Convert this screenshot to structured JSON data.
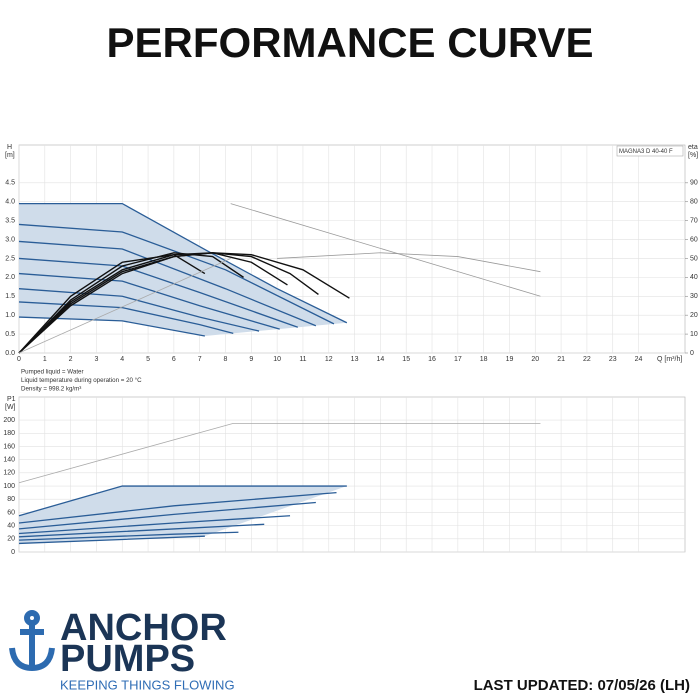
{
  "header": {
    "title": "PERFORMANCE CURVE"
  },
  "footer": {
    "brand_top": "ANCHOR",
    "brand_bottom": "PUMPS",
    "tagline": "KEEPING THINGS FLOWING",
    "updated": "LAST UPDATED: 07/05/26 (LH)"
  },
  "chart_data": [
    {
      "type": "line",
      "ylabel": "H",
      "yunit": "[m]",
      "y2label": "eta",
      "y2unit": "[%]",
      "xlabel": "Q [m³/h]",
      "model": "MAGNA3 D 40-40 F",
      "xlim": [
        0,
        25.8
      ],
      "xticks": [
        0,
        1,
        2,
        3,
        4,
        5,
        6,
        7,
        8,
        9,
        10,
        11,
        12,
        13,
        14,
        15,
        16,
        17,
        18,
        19,
        20,
        21,
        22,
        23,
        24
      ],
      "xtick_labels": true,
      "ylim": [
        0,
        5.5
      ],
      "yticks": [
        {
          "value": 0,
          "label": "0.0"
        },
        0.5,
        {
          "value": 1,
          "label": "1.0"
        },
        1.5,
        {
          "value": 2,
          "label": "2.0"
        },
        2.5,
        {
          "value": 3,
          "label": "3.0"
        },
        3.5,
        {
          "value": 4,
          "label": "4.0"
        },
        4.5
      ],
      "y2lim": [
        0,
        110
      ],
      "y2ticks": [
        0,
        10,
        20,
        30,
        40,
        50,
        60,
        70,
        80,
        90
      ],
      "grid": true,
      "band": {
        "from": 0,
        "to": 7,
        "color": "#cfdcea"
      },
      "notes": [
        "Pumped liquid = Water",
        "Liquid temperature during operation = 20 °C",
        "Density = 998.2 kg/m³"
      ],
      "series": [
        {
          "color": "#2a5d97",
          "x": [
            0,
            4,
            7.3,
            10,
            12.7
          ],
          "values": [
            3.95,
            3.95,
            2.7,
            1.7,
            0.8
          ]
        },
        {
          "color": "#2a5d97",
          "x": [
            0,
            4,
            8,
            12.2
          ],
          "values": [
            3.4,
            3.2,
            2.2,
            0.77
          ]
        },
        {
          "color": "#2a5d97",
          "x": [
            0,
            4,
            8,
            11.5
          ],
          "values": [
            2.95,
            2.75,
            1.7,
            0.72
          ]
        },
        {
          "color": "#2a5d97",
          "x": [
            0,
            4,
            7,
            10.8
          ],
          "values": [
            2.5,
            2.3,
            1.6,
            0.68
          ]
        },
        {
          "color": "#2a5d97",
          "x": [
            0,
            4,
            7,
            10.1
          ],
          "values": [
            2.1,
            1.9,
            1.25,
            0.63
          ]
        },
        {
          "color": "#2a5d97",
          "x": [
            0,
            4,
            7,
            9.3
          ],
          "values": [
            1.7,
            1.5,
            0.95,
            0.58
          ]
        },
        {
          "color": "#2a5d97",
          "x": [
            0,
            4,
            7,
            8.3
          ],
          "values": [
            1.35,
            1.2,
            0.75,
            0.52
          ]
        },
        {
          "color": "#2a5d97",
          "x": [
            0,
            4,
            7.2
          ],
          "values": [
            0.95,
            0.85,
            0.45
          ]
        },
        {
          "color": "#111111",
          "axis": "y2",
          "x": [
            0,
            2,
            4,
            6,
            7.5,
            9,
            11,
            12.8
          ],
          "values": [
            0,
            25,
            42,
            51,
            53,
            52,
            44,
            29
          ]
        },
        {
          "color": "#111111",
          "axis": "y2",
          "x": [
            0,
            2,
            4,
            6,
            7.5,
            9,
            10.5,
            11.6
          ],
          "values": [
            0,
            26,
            43,
            51,
            53,
            51,
            42,
            31
          ]
        },
        {
          "color": "#111111",
          "axis": "y2",
          "x": [
            0,
            2,
            4,
            6,
            7.5,
            9,
            10.4
          ],
          "values": [
            0,
            27,
            44,
            52,
            53,
            48,
            36
          ]
        },
        {
          "color": "#111111",
          "axis": "y2",
          "x": [
            0,
            2,
            4,
            6,
            7.5,
            8.7
          ],
          "values": [
            0,
            28,
            46,
            53,
            51,
            40
          ]
        },
        {
          "color": "#111111",
          "axis": "y2",
          "x": [
            0,
            2,
            4,
            6,
            7.2
          ],
          "values": [
            0,
            30,
            48,
            52,
            42
          ]
        },
        {
          "color": "#999999",
          "x": [
            8.2,
            20.2
          ],
          "values": [
            3.95,
            1.5
          ]
        },
        {
          "color": "#999999",
          "axis": "y2",
          "x": [
            10,
            14,
            17,
            20.2
          ],
          "values": [
            50,
            53,
            51,
            43
          ]
        },
        {
          "color": "#aaaaaa",
          "x": [
            0,
            8.2
          ],
          "values": [
            0,
            2.5
          ]
        }
      ]
    },
    {
      "type": "line",
      "ylabel": "P1",
      "yunit": "[W]",
      "xlim": [
        0,
        25.8
      ],
      "xticks": [
        0,
        1,
        2,
        3,
        4,
        5,
        6,
        7,
        8,
        9,
        10,
        11,
        12,
        13,
        14,
        15,
        16,
        17,
        18,
        19,
        20,
        21,
        22,
        23,
        24
      ],
      "xtick_labels": false,
      "ylim": [
        0,
        235
      ],
      "yticks": [
        0,
        20,
        40,
        60,
        80,
        100,
        120,
        140,
        160,
        180,
        200
      ],
      "grid": true,
      "band": {
        "from": 0,
        "to": 6,
        "color": "#cfdcea"
      },
      "series": [
        {
          "color": "#2a5d97",
          "x": [
            0,
            4,
            12.7
          ],
          "values": [
            55,
            100,
            100
          ]
        },
        {
          "color": "#2a5d97",
          "x": [
            0,
            6,
            12.3
          ],
          "values": [
            44,
            70,
            90
          ]
        },
        {
          "color": "#2a5d97",
          "x": [
            0,
            6,
            11.5
          ],
          "values": [
            35,
            57,
            75
          ]
        },
        {
          "color": "#2a5d97",
          "x": [
            0,
            6,
            10.5
          ],
          "values": [
            28,
            44,
            55
          ]
        },
        {
          "color": "#2a5d97",
          "x": [
            0,
            6,
            9.5
          ],
          "values": [
            23,
            35,
            42
          ]
        },
        {
          "color": "#2a5d97",
          "x": [
            0,
            6,
            8.5
          ],
          "values": [
            18,
            27,
            30
          ]
        },
        {
          "color": "#2a5d97",
          "x": [
            0,
            4,
            7.2
          ],
          "values": [
            13,
            19,
            24
          ]
        },
        {
          "color": "#aaaaaa",
          "x": [
            0,
            8.3,
            20.2
          ],
          "values": [
            105,
            195,
            195
          ]
        }
      ]
    }
  ]
}
